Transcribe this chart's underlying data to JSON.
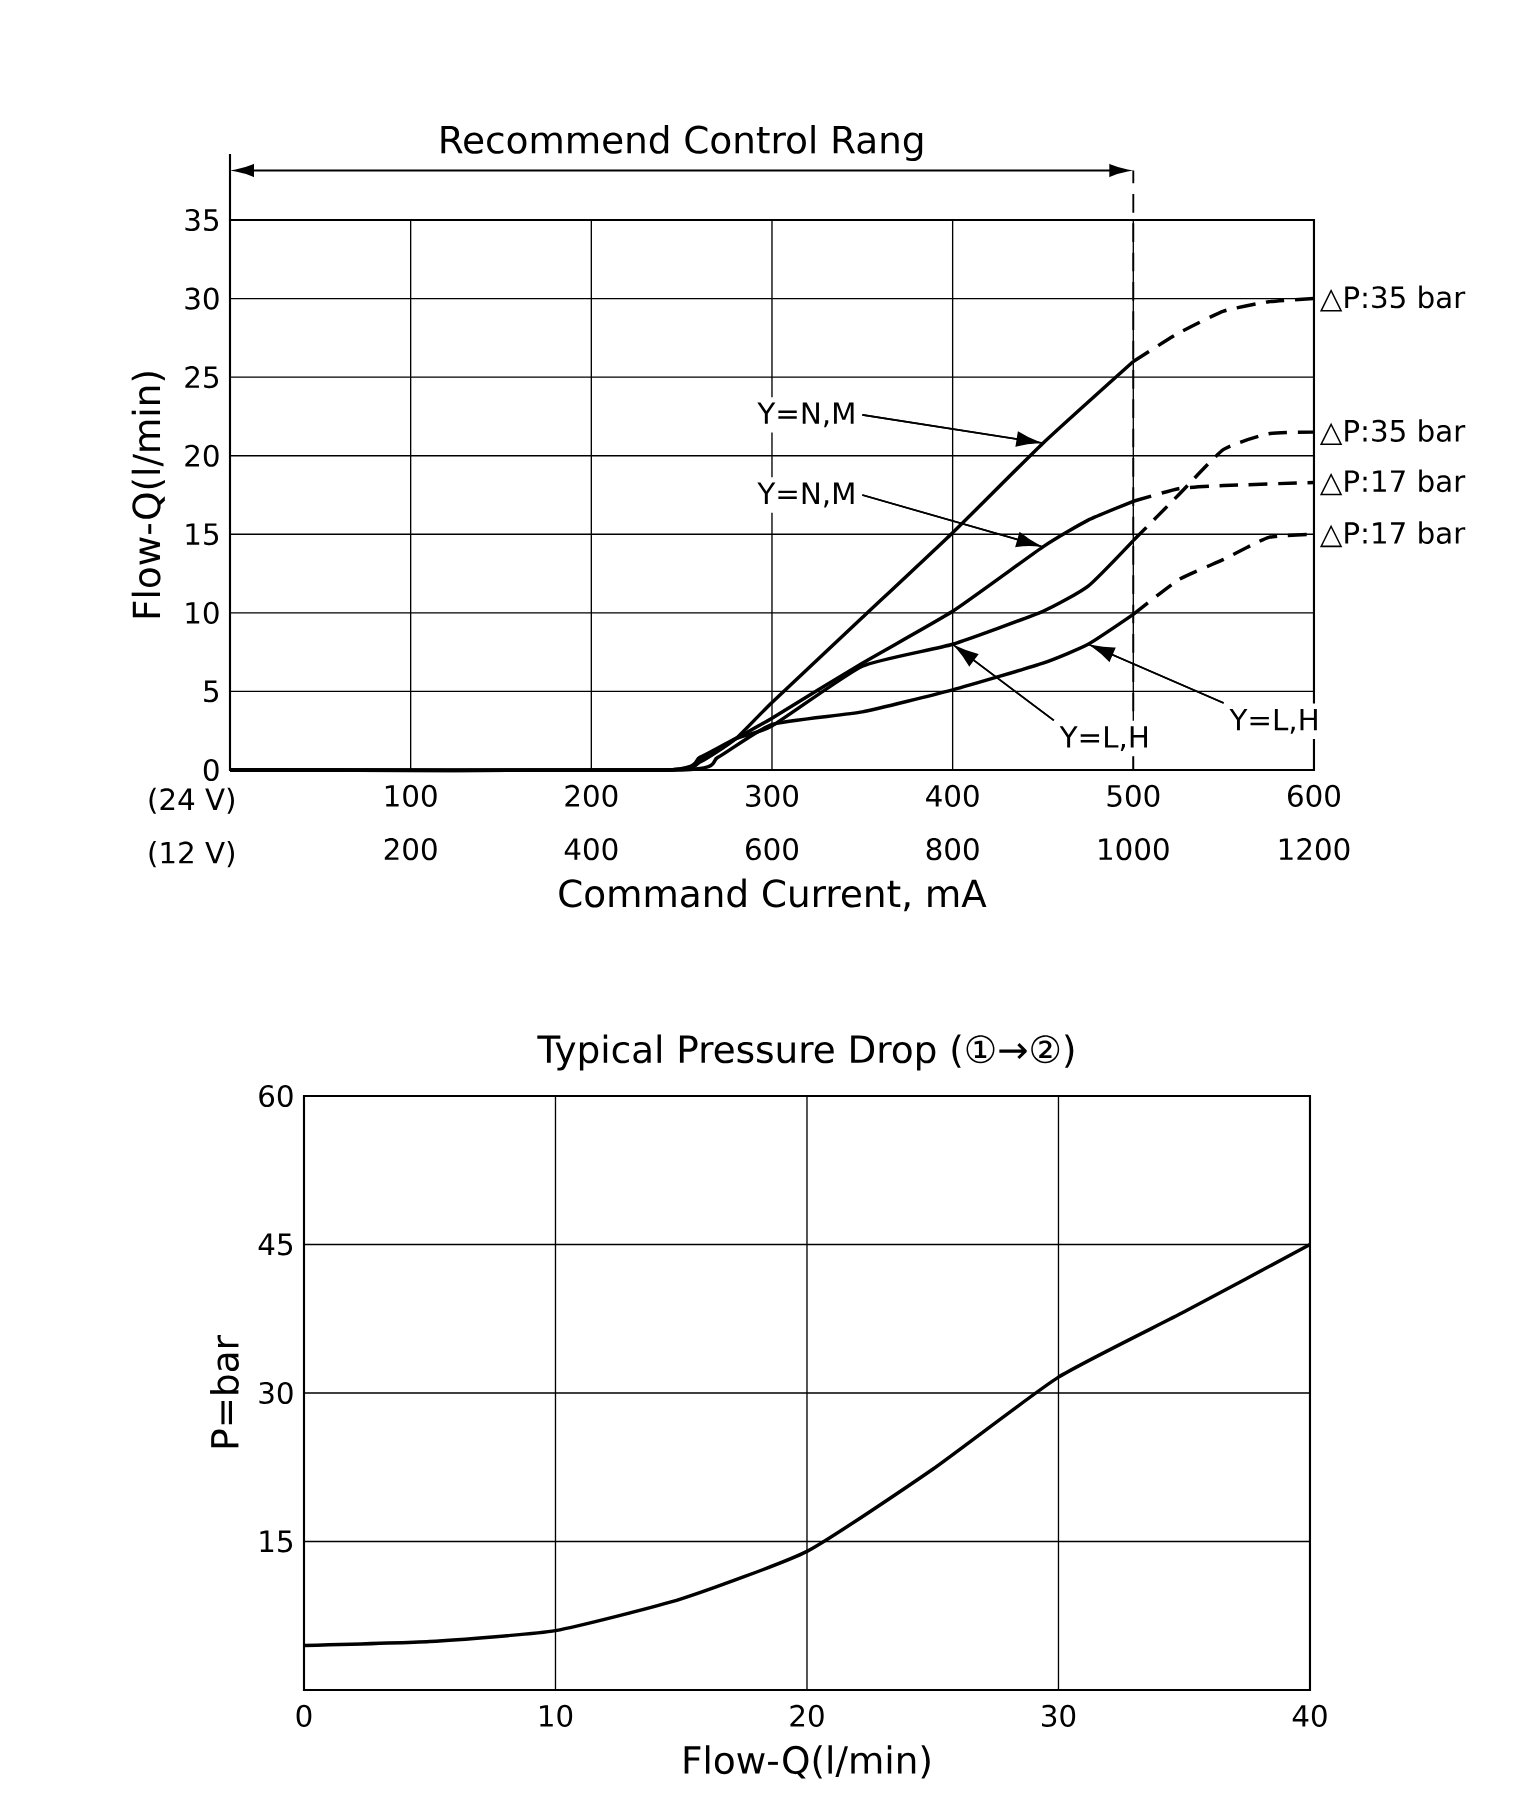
{
  "chart_data": [
    {
      "type": "line",
      "xlabel": "Command Current, mA",
      "ylabel": "Flow-Q(l/min)",
      "xlim": [
        0,
        600
      ],
      "ylim": [
        0,
        35
      ],
      "xticks": [
        100,
        200,
        300,
        400,
        500,
        600
      ],
      "x2lim": [
        0,
        1200
      ],
      "x2ticks": [
        200,
        400,
        600,
        800,
        1000,
        1200
      ],
      "yticks": [
        0,
        5,
        10,
        15,
        20,
        25,
        30,
        35
      ],
      "grid": true,
      "line_style": "solid",
      "ref_lines": [
        {
          "axis": "x",
          "value": 500,
          "line_style": "dashed"
        }
      ],
      "series": [
        {
          "color": "#000000",
          "x": [
            0,
            240,
            260,
            280,
            300,
            350,
            400,
            450,
            500
          ],
          "values": [
            0,
            0,
            0.5,
            2,
            4.3,
            9.7,
            15.1,
            20.8,
            26
          ]
        },
        {
          "name": "△P:35 bar",
          "color": "#000000",
          "line_style": "dashed",
          "x": [
            500,
            525,
            550,
            575,
            600
          ],
          "values": [
            26,
            27.8,
            29.2,
            29.8,
            30
          ]
        },
        {
          "color": "#000000",
          "x": [
            0,
            240,
            260,
            280,
            300,
            350,
            400,
            450,
            475,
            500
          ],
          "values": [
            0,
            0,
            0.8,
            2,
            2.8,
            6.6,
            8,
            10.1,
            11.7,
            14.6
          ]
        },
        {
          "name": "△P:35 bar",
          "color": "#000000",
          "line_style": "dashed",
          "x": [
            500,
            525,
            550,
            575,
            600
          ],
          "values": [
            14.6,
            17.5,
            20.4,
            21.4,
            21.5
          ]
        },
        {
          "color": "#000000",
          "x": [
            0,
            240,
            260,
            280,
            300,
            350,
            400,
            450,
            475,
            500
          ],
          "values": [
            0,
            0,
            0.6,
            2,
            3.3,
            6.8,
            10.1,
            14.2,
            15.9,
            17.1
          ]
        },
        {
          "name": "△P:17 bar",
          "color": "#000000",
          "line_style": "dashed",
          "x": [
            500,
            525,
            550,
            600
          ],
          "values": [
            17.1,
            17.9,
            18.1,
            18.3
          ]
        },
        {
          "color": "#000000",
          "x": [
            0,
            250,
            270,
            300,
            350,
            400,
            450,
            475,
            500
          ],
          "values": [
            0,
            0,
            0.8,
            2.9,
            3.7,
            5.1,
            6.8,
            8,
            9.9
          ]
        },
        {
          "name": "△P:17 bar",
          "color": "#000000",
          "line_style": "dashed",
          "x": [
            500,
            525,
            550,
            575,
            600
          ],
          "values": [
            9.9,
            12.1,
            13.4,
            14.8,
            15
          ]
        }
      ],
      "annotations": [
        {
          "text": "Y=N,M",
          "x": 450,
          "y": 20.8
        },
        {
          "text": "Y=N,M",
          "x": 450,
          "y": 14.2
        },
        {
          "text": "Y=L,H",
          "x": 400,
          "y": 8
        },
        {
          "text": "Y=L,H",
          "x": 475,
          "y": 8
        },
        "(24 V)",
        "(12 V)",
        "Recommend Control Rang"
      ]
    },
    {
      "type": "line",
      "title": "Typical Pressure Drop (①→②)",
      "xlabel": "Flow-Q(l/min)",
      "ylabel": "P=bar",
      "xlim": [
        0,
        40
      ],
      "ylim": [
        0,
        60
      ],
      "xticks": [
        0,
        10,
        20,
        30,
        40
      ],
      "yticks": [
        15,
        30,
        45,
        60
      ],
      "grid": true,
      "line_style": "solid",
      "series": [
        {
          "color": "#000000",
          "x": [
            0,
            5,
            10,
            15,
            20,
            25,
            30,
            35,
            40
          ],
          "values": [
            4.5,
            4.9,
            6,
            9.2,
            14,
            22.3,
            31.6,
            38.2,
            45
          ]
        }
      ]
    }
  ]
}
